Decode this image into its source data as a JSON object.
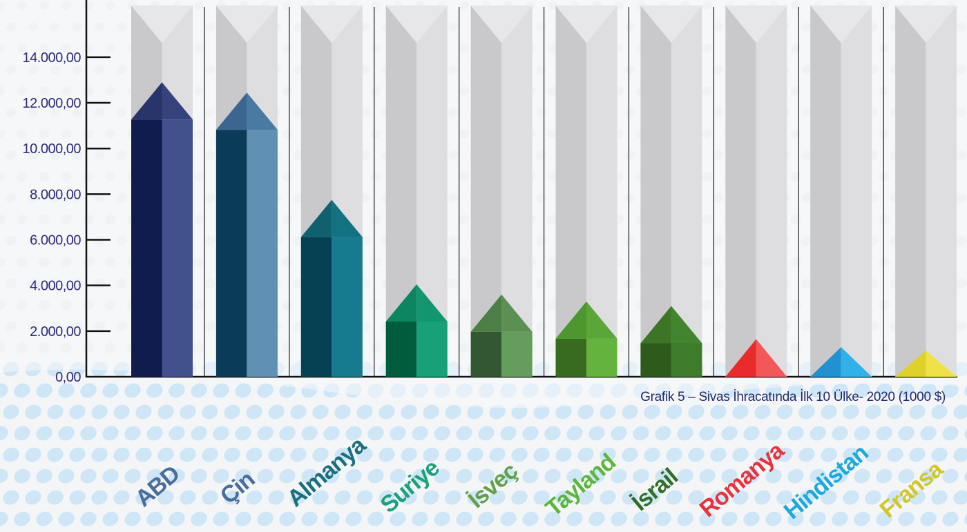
{
  "chart_data": {
    "type": "bar",
    "caption": "Grafik 5 – Sivas İhracatında İlk 10 Ülke- 2020 (1000 $)",
    "categories": [
      "ABD",
      "Çin",
      "Almanya",
      "Suriye",
      "İsveç",
      "Tayland",
      "İsrail",
      "Romanya",
      "Hindistan",
      "Fransa"
    ],
    "values": [
      12900,
      12450,
      7750,
      4050,
      3600,
      3300,
      3100,
      1650,
      1300,
      1150
    ],
    "ylim": [
      0,
      16000
    ],
    "yticks": [
      0,
      2000,
      4000,
      6000,
      8000,
      10000,
      12000,
      14000
    ],
    "ytick_labels": [
      "0,00",
      "2.000,00",
      "4.000,00",
      "6.000,00",
      "8.000,00",
      "10.000,00",
      "12.000,00",
      "14.000,00"
    ],
    "grid": false,
    "legend": "none",
    "colors": {
      "bar_dark": [
        "#101c4e",
        "#0a3b57",
        "#054152",
        "#015c3e",
        "#335732",
        "#386b20",
        "#2c5b1c",
        "#e92b2b",
        "#2191d2",
        "#dfd12a"
      ],
      "bar_light": [
        "#42508c",
        "#6090b3",
        "#177b8f",
        "#18a078",
        "#659d5c",
        "#64b33e",
        "#3c7c2a",
        "#f25759",
        "#30b1e7",
        "#efe246"
      ],
      "roof_dark": [
        "#28346a",
        "#3c6690",
        "#10606f",
        "#0d8560",
        "#4d7e46",
        "#4d9630",
        "#3b7525",
        "#e92b2b",
        "#2191d2",
        "#dfd12a"
      ],
      "roof_light": [
        "#36427c",
        "#4a7aa1",
        "#127282",
        "#139670",
        "#5c8f52",
        "#5aa638",
        "#43852e",
        "#f25759",
        "#30b1e7",
        "#efe246"
      ],
      "label": [
        "#4a6d9c",
        "#4a6d9c",
        "#1a6f7f",
        "#1ba27a",
        "#62a04f",
        "#5cb53c",
        "#2f7028",
        "#e8333f",
        "#1ca8e0",
        "#d1c62b"
      ],
      "axis": "#111111",
      "tick_text": "#2e2a7a",
      "caption": "#1f2a6e"
    }
  }
}
